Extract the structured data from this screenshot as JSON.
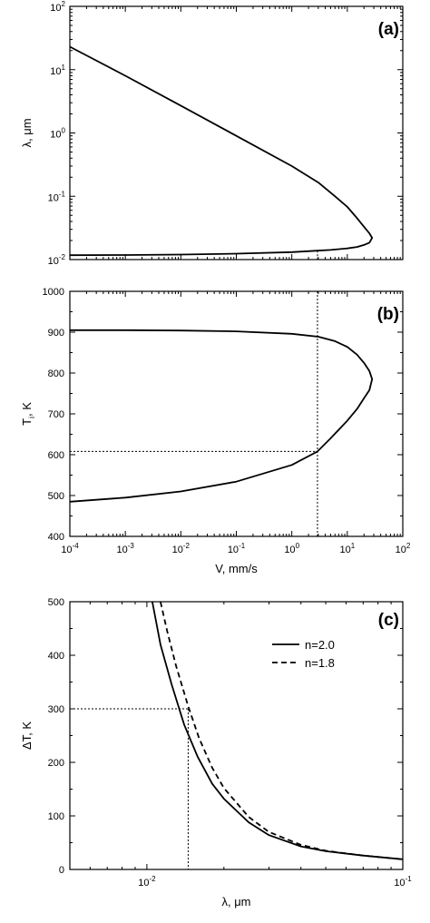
{
  "chart_data": [
    {
      "panel": "(a)",
      "type": "line",
      "xscale": "log",
      "yscale": "log",
      "xlim": [
        0.0001,
        100
      ],
      "ylim": [
        0.01,
        100
      ],
      "xlabel": "",
      "ylabel": "λ, μm",
      "yticks": [
        0.01,
        0.1,
        1,
        10,
        100
      ],
      "ytick_labels": [
        [
          "10",
          "-2"
        ],
        [
          "10",
          "-1"
        ],
        [
          "10",
          "0"
        ],
        [
          "10",
          "1"
        ],
        [
          "10",
          "2"
        ]
      ],
      "series": [
        {
          "style": "solid",
          "x": [
            0.0001,
            0.001,
            0.01,
            0.1,
            1,
            3,
            6,
            10,
            15,
            20,
            25,
            28,
            25,
            20,
            15,
            10,
            5,
            2.9,
            1,
            0.1,
            0.01,
            0.001,
            0.0001
          ],
          "y": [
            23,
            8,
            2.7,
            0.9,
            0.3,
            0.165,
            0.1,
            0.068,
            0.045,
            0.033,
            0.026,
            0.022,
            0.0185,
            0.017,
            0.0158,
            0.015,
            0.0142,
            0.0138,
            0.0131,
            0.0124,
            0.012,
            0.0118,
            0.0117
          ]
        }
      ],
      "guide_lines": [
        {
          "style": "dotted",
          "x": [
            2.9,
            2.9
          ],
          "y": [
            0.0138,
            0.01
          ]
        }
      ]
    },
    {
      "panel": "(b)",
      "type": "line",
      "xscale": "log",
      "yscale": "linear",
      "xlim": [
        0.0001,
        100
      ],
      "ylim": [
        400,
        1000
      ],
      "xlabel": "V, mm/s",
      "ylabel": "T",
      "ylabel_sub": "i",
      "ylabel_tail": ", K",
      "yticks": [
        400,
        500,
        600,
        700,
        800,
        900,
        1000
      ],
      "ytick_labels": [
        "400",
        "500",
        "600",
        "700",
        "800",
        "900",
        "1000"
      ],
      "xticks": [
        0.0001,
        0.001,
        0.01,
        0.1,
        1,
        10,
        100
      ],
      "xtick_labels": [
        [
          "10",
          "-4"
        ],
        [
          "10",
          "-3"
        ],
        [
          "10",
          "-2"
        ],
        [
          "10",
          "-1"
        ],
        [
          "10",
          "0"
        ],
        [
          "10",
          "1"
        ],
        [
          "10",
          "2"
        ]
      ],
      "series": [
        {
          "style": "solid",
          "x": [
            0.0001,
            0.001,
            0.01,
            0.1,
            1,
            3,
            6,
            10,
            15,
            20,
            25,
            28,
            25,
            20,
            15,
            10,
            5,
            2.9,
            1,
            0.1,
            0.01,
            0.001,
            0.0001
          ],
          "y": [
            905,
            905,
            904,
            902,
            896,
            889,
            878,
            864,
            845,
            825,
            805,
            785,
            758,
            738,
            712,
            683,
            640,
            608,
            575,
            534,
            510,
            495,
            485
          ]
        }
      ],
      "guide_lines": [
        {
          "style": "dotted",
          "x": [
            0.0001,
            2.9
          ],
          "y": [
            608,
            608
          ]
        },
        {
          "style": "dotted",
          "x": [
            2.9,
            2.9
          ],
          "y": [
            1000,
            400
          ]
        }
      ]
    },
    {
      "panel": "(c)",
      "type": "line",
      "xscale": "log",
      "yscale": "linear",
      "xlim": [
        0.005,
        0.1
      ],
      "ylim": [
        0,
        500
      ],
      "xlabel": "λ, μm",
      "ylabel": "ΔT, K",
      "yticks": [
        0,
        100,
        200,
        300,
        400,
        500
      ],
      "ytick_labels": [
        "0",
        "100",
        "200",
        "300",
        "400",
        "500"
      ],
      "xticks": [
        0.01,
        0.1
      ],
      "xtick_labels": [
        [
          "10",
          "-2"
        ],
        [
          "10",
          "-1"
        ]
      ],
      "series": [
        {
          "name": "n=2.0",
          "style": "solid",
          "x": [
            0.0105,
            0.0113,
            0.0125,
            0.014,
            0.0158,
            0.018,
            0.02,
            0.025,
            0.03,
            0.04,
            0.05,
            0.07,
            0.1
          ],
          "y": [
            500,
            420,
            345,
            270,
            210,
            160,
            132,
            88,
            64,
            43,
            34,
            26,
            19
          ]
        },
        {
          "name": "n=1.8",
          "style": "dashed",
          "x": [
            0.0113,
            0.012,
            0.013,
            0.0145,
            0.016,
            0.018,
            0.02,
            0.025,
            0.03,
            0.04,
            0.05,
            0.07,
            0.1
          ],
          "y": [
            500,
            445,
            380,
            305,
            245,
            190,
            152,
            98,
            70,
            46,
            35,
            26,
            19
          ]
        }
      ],
      "guide_lines": [
        {
          "style": "dotted",
          "x": [
            0.005,
            0.0145
          ],
          "y": [
            300,
            300
          ]
        },
        {
          "style": "dotted",
          "x": [
            0.0145,
            0.0145
          ],
          "y": [
            300,
            0
          ]
        }
      ],
      "legend": "top-right"
    }
  ]
}
